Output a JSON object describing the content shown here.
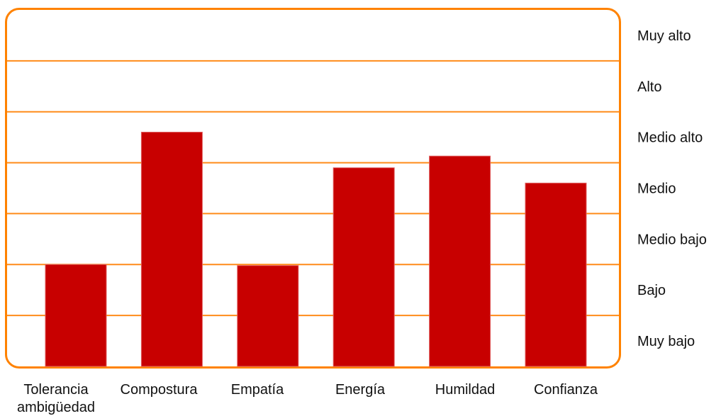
{
  "chart_data": {
    "type": "bar",
    "categories": [
      "Tolerancia ambigüedad",
      "Compostura",
      "Empatía",
      "Energía",
      "Humildad",
      "Confianza"
    ],
    "category_lines": [
      [
        "Tolerancia",
        "ambigüedad"
      ],
      [
        "Compostura"
      ],
      [
        "Empatía"
      ],
      [
        "Energía"
      ],
      [
        "Humildad"
      ],
      [
        "Confianza"
      ]
    ],
    "values": [
      2.0,
      4.6,
      1.98,
      3.9,
      4.13,
      3.6
    ],
    "level_labels": [
      "Muy bajo",
      "Bajo",
      "Medio bajo",
      "Medio",
      "Medio alto",
      "Alto",
      "Muy alto"
    ],
    "ylim": [
      0,
      7
    ],
    "grid": true,
    "y_axis_side": "right",
    "title": "",
    "xlabel": "",
    "ylabel": "",
    "colors": {
      "bar": "#c80000",
      "grid": "#ff8c1a",
      "frame": "#ff8200",
      "text": "#111111"
    }
  }
}
